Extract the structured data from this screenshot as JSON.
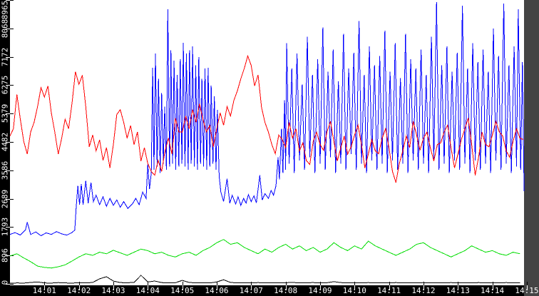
{
  "chart_data": {
    "type": "line",
    "title": "",
    "xlabel": "",
    "ylabel": "",
    "grid": false,
    "legend": "none",
    "plot_bg": "#ffffff",
    "axis_bg": "#000000",
    "tick_text_color": "#ffffff",
    "x_axis": {
      "unit": "time",
      "start_time": "14:00",
      "range_minutes": [
        0,
        14.92
      ],
      "ticks": [
        {
          "minute": 1,
          "label": "14:01"
        },
        {
          "minute": 2,
          "label": "14:02"
        },
        {
          "minute": 3,
          "label": "14:03"
        },
        {
          "minute": 4,
          "label": "14:04"
        },
        {
          "minute": 5,
          "label": "14:05"
        },
        {
          "minute": 6,
          "label": "14:06"
        },
        {
          "minute": 7,
          "label": "14:07"
        },
        {
          "minute": 8,
          "label": "14:08"
        },
        {
          "minute": 9,
          "label": "14:09"
        },
        {
          "minute": 10,
          "label": "14:10"
        },
        {
          "minute": 11,
          "label": "14:11"
        },
        {
          "minute": 12,
          "label": "14:12"
        },
        {
          "minute": 13,
          "label": "14:13"
        },
        {
          "minute": 14,
          "label": "14:14"
        },
        {
          "minute": 15,
          "label": "14:15"
        }
      ]
    },
    "y_axis": {
      "range": [
        0,
        8965
      ],
      "ticks": [
        0,
        896,
        1793,
        2689,
        3586,
        4482,
        5379,
        6275,
        7172,
        8068,
        8965
      ],
      "tick_labels": [
        "0",
        "896",
        "1793",
        "2689",
        "3586",
        "4482",
        "5379",
        "6275",
        "7172",
        "8068",
        "8965"
      ]
    },
    "series": [
      {
        "name": "red",
        "color": "#ff0000",
        "t0": 0,
        "dt": 0.1,
        "values": [
          4670,
          4900,
          5980,
          5200,
          4500,
          4100,
          4800,
          5100,
          5600,
          6200,
          5900,
          6250,
          5400,
          4800,
          4100,
          4600,
          5200,
          4900,
          5700,
          6700,
          6300,
          6590,
          5600,
          4330,
          4700,
          4200,
          4550,
          3900,
          4300,
          3660,
          4400,
          5350,
          5500,
          5100,
          4600,
          5000,
          4400,
          4800,
          3880,
          4300,
          3800,
          3550,
          3430,
          3900,
          3550,
          4200,
          4600,
          4100,
          5240,
          4800,
          4790,
          5300,
          4900,
          5500,
          5100,
          5690,
          5200,
          4800,
          5000,
          4330,
          4900,
          5400,
          5010,
          5600,
          5300,
          5800,
          6100,
          6480,
          6800,
          7200,
          6900,
          6255,
          6600,
          5580,
          5100,
          4790,
          4400,
          4110,
          4700,
          4560,
          4300,
          5100,
          4600,
          4900,
          4200,
          4450,
          3900,
          3770,
          4500,
          4790,
          4400,
          4220,
          4800,
          5130,
          4500,
          3880,
          4300,
          4670,
          4100,
          4330,
          4700,
          5010,
          4400,
          3660,
          4100,
          4560,
          4200,
          4110,
          4600,
          4900,
          4300,
          3550,
          3200,
          3800,
          4200,
          4670,
          4300,
          5130,
          4700,
          4220,
          4600,
          4790,
          4300,
          3880,
          4400,
          4450,
          4800,
          5010,
          4300,
          3660,
          4100,
          4560,
          4900,
          5240,
          4400,
          3430,
          4000,
          4790,
          4400,
          4330,
          4700,
          5130,
          4800,
          4670,
          4200,
          4000,
          4500,
          4900,
          4600,
          4560
        ]
      },
      {
        "name": "blue",
        "color": "#0000ff",
        "points": [
          [
            0.0,
            1560
          ],
          [
            0.15,
            1620
          ],
          [
            0.3,
            1540
          ],
          [
            0.45,
            1700
          ],
          [
            0.5,
            1950
          ],
          [
            0.6,
            1560
          ],
          [
            0.75,
            1640
          ],
          [
            0.9,
            1520
          ],
          [
            1.05,
            1610
          ],
          [
            1.2,
            1560
          ],
          [
            1.35,
            1650
          ],
          [
            1.5,
            1580
          ],
          [
            1.65,
            1540
          ],
          [
            1.8,
            1620
          ],
          [
            1.88,
            1700
          ],
          [
            1.92,
            2400
          ],
          [
            1.97,
            3100
          ],
          [
            2.02,
            2500
          ],
          [
            2.07,
            3150
          ],
          [
            2.12,
            2500
          ],
          [
            2.2,
            3250
          ],
          [
            2.27,
            2550
          ],
          [
            2.35,
            3200
          ],
          [
            2.42,
            2600
          ],
          [
            2.5,
            2800
          ],
          [
            2.6,
            2500
          ],
          [
            2.7,
            2750
          ],
          [
            2.8,
            2450
          ],
          [
            2.9,
            2700
          ],
          [
            3.0,
            2480
          ],
          [
            3.1,
            2650
          ],
          [
            3.2,
            2420
          ],
          [
            3.3,
            2600
          ],
          [
            3.42,
            2380
          ],
          [
            3.55,
            2520
          ],
          [
            3.65,
            2700
          ],
          [
            3.75,
            2500
          ],
          [
            3.85,
            2900
          ],
          [
            3.95,
            2700
          ],
          [
            4.0,
            3770
          ],
          [
            4.05,
            3000
          ],
          [
            4.1,
            3500
          ],
          [
            4.14,
            6820
          ],
          [
            4.18,
            3600
          ],
          [
            4.22,
            7270
          ],
          [
            4.27,
            3700
          ],
          [
            4.31,
            6480
          ],
          [
            4.36,
            3500
          ],
          [
            4.4,
            6030
          ],
          [
            4.45,
            3800
          ],
          [
            4.49,
            5600
          ],
          [
            4.54,
            3600
          ],
          [
            4.58,
            8670
          ],
          [
            4.63,
            3700
          ],
          [
            4.67,
            7380
          ],
          [
            4.72,
            3800
          ],
          [
            4.76,
            7045
          ],
          [
            4.81,
            3600
          ],
          [
            4.85,
            6600
          ],
          [
            4.9,
            3700
          ],
          [
            4.94,
            7100
          ],
          [
            4.99,
            3800
          ],
          [
            5.03,
            7610
          ],
          [
            5.08,
            3700
          ],
          [
            5.12,
            7270
          ],
          [
            5.17,
            3600
          ],
          [
            5.21,
            7380
          ],
          [
            5.26,
            3800
          ],
          [
            5.3,
            7500
          ],
          [
            5.35,
            3700
          ],
          [
            5.39,
            6900
          ],
          [
            5.44,
            3600
          ],
          [
            5.48,
            7160
          ],
          [
            5.53,
            3800
          ],
          [
            5.57,
            6480
          ],
          [
            5.62,
            3700
          ],
          [
            5.66,
            6800
          ],
          [
            5.71,
            3600
          ],
          [
            5.75,
            6820
          ],
          [
            5.8,
            3700
          ],
          [
            5.84,
            6260
          ],
          [
            5.89,
            3800
          ],
          [
            5.93,
            5920
          ],
          [
            5.98,
            3600
          ],
          [
            6.02,
            5500
          ],
          [
            6.07,
            3400
          ],
          [
            6.12,
            2900
          ],
          [
            6.2,
            2600
          ],
          [
            6.3,
            3320
          ],
          [
            6.38,
            2550
          ],
          [
            6.45,
            2800
          ],
          [
            6.55,
            2520
          ],
          [
            6.62,
            2750
          ],
          [
            6.7,
            2480
          ],
          [
            6.78,
            2700
          ],
          [
            6.85,
            2550
          ],
          [
            6.92,
            2820
          ],
          [
            7.0,
            2600
          ],
          [
            7.08,
            2780
          ],
          [
            7.15,
            2560
          ],
          [
            7.25,
            3430
          ],
          [
            7.32,
            2650
          ],
          [
            7.4,
            2850
          ],
          [
            7.5,
            2700
          ],
          [
            7.58,
            2950
          ],
          [
            7.65,
            2800
          ],
          [
            7.72,
            3100
          ],
          [
            7.78,
            4000
          ],
          [
            7.82,
            3300
          ],
          [
            7.88,
            4900
          ],
          [
            7.92,
            3500
          ],
          [
            7.97,
            5800
          ],
          [
            8.0,
            3600
          ],
          [
            8.03,
            7600
          ],
          [
            8.1,
            3800
          ],
          [
            8.18,
            6800
          ],
          [
            8.25,
            3500
          ],
          [
            8.33,
            7270
          ],
          [
            8.4,
            3900
          ],
          [
            8.48,
            6300
          ],
          [
            8.55,
            3600
          ],
          [
            8.63,
            7800
          ],
          [
            8.7,
            4000
          ],
          [
            8.78,
            6600
          ],
          [
            8.85,
            3500
          ],
          [
            8.93,
            7100
          ],
          [
            9.0,
            3800
          ],
          [
            9.08,
            8100
          ],
          [
            9.15,
            3600
          ],
          [
            9.23,
            6700
          ],
          [
            9.3,
            4000
          ],
          [
            9.38,
            7400
          ],
          [
            9.45,
            3500
          ],
          [
            9.53,
            6400
          ],
          [
            9.6,
            3800
          ],
          [
            9.68,
            7900
          ],
          [
            9.75,
            3600
          ],
          [
            9.83,
            6800
          ],
          [
            9.9,
            4100
          ],
          [
            9.98,
            7300
          ],
          [
            10.05,
            3600
          ],
          [
            10.13,
            8300
          ],
          [
            10.2,
            3800
          ],
          [
            10.28,
            6600
          ],
          [
            10.35,
            3500
          ],
          [
            10.43,
            7500
          ],
          [
            10.5,
            3900
          ],
          [
            10.58,
            6900
          ],
          [
            10.65,
            3600
          ],
          [
            10.73,
            7200
          ],
          [
            10.8,
            3800
          ],
          [
            10.88,
            8000
          ],
          [
            10.95,
            3500
          ],
          [
            11.03,
            6700
          ],
          [
            11.1,
            3900
          ],
          [
            11.18,
            7600
          ],
          [
            11.25,
            3600
          ],
          [
            11.33,
            6500
          ],
          [
            11.4,
            3800
          ],
          [
            11.48,
            7900
          ],
          [
            11.55,
            3500
          ],
          [
            11.63,
            7100
          ],
          [
            11.7,
            3900
          ],
          [
            11.78,
            6800
          ],
          [
            11.85,
            3600
          ],
          [
            11.93,
            7400
          ],
          [
            12.0,
            3800
          ],
          [
            12.08,
            6600
          ],
          [
            12.15,
            3500
          ],
          [
            12.23,
            7800
          ],
          [
            12.3,
            3900
          ],
          [
            12.38,
            8900
          ],
          [
            12.45,
            3600
          ],
          [
            12.53,
            6900
          ],
          [
            12.6,
            3800
          ],
          [
            12.68,
            7500
          ],
          [
            12.75,
            3500
          ],
          [
            12.83,
            6700
          ],
          [
            12.9,
            3900
          ],
          [
            12.98,
            7300
          ],
          [
            13.05,
            3600
          ],
          [
            13.13,
            8780
          ],
          [
            13.2,
            3800
          ],
          [
            13.28,
            6800
          ],
          [
            13.35,
            3500
          ],
          [
            13.43,
            7600
          ],
          [
            13.5,
            3900
          ],
          [
            13.58,
            7000
          ],
          [
            13.65,
            3600
          ],
          [
            13.73,
            7400
          ],
          [
            13.8,
            3800
          ],
          [
            13.88,
            6700
          ],
          [
            13.95,
            3500
          ],
          [
            14.03,
            8060
          ],
          [
            14.1,
            3900
          ],
          [
            14.18,
            7200
          ],
          [
            14.25,
            3600
          ],
          [
            14.33,
            8850
          ],
          [
            14.4,
            3800
          ],
          [
            14.48,
            6900
          ],
          [
            14.55,
            3500
          ],
          [
            14.63,
            7500
          ],
          [
            14.7,
            3700
          ],
          [
            14.75,
            8670
          ],
          [
            14.82,
            3600
          ],
          [
            14.87,
            7000
          ],
          [
            14.92,
            2930
          ]
        ]
      },
      {
        "name": "green",
        "color": "#00dd00",
        "t0": 0,
        "dt": 0.2,
        "values": [
          880,
          950,
          820,
          700,
          560,
          520,
          500,
          540,
          600,
          720,
          850,
          950,
          900,
          1000,
          950,
          1060,
          980,
          900,
          1000,
          1100,
          1050,
          950,
          1000,
          900,
          850,
          950,
          1000,
          900,
          1050,
          1150,
          1300,
          1400,
          1250,
          1300,
          1150,
          1050,
          950,
          1100,
          1000,
          1150,
          1250,
          1100,
          1200,
          1050,
          1150,
          1000,
          1100,
          1300,
          1150,
          1050,
          1200,
          1100,
          1350,
          1200,
          1100,
          1000,
          900,
          1000,
          1100,
          1250,
          1300,
          1150,
          1050,
          950,
          850,
          950,
          1050,
          1200,
          1100,
          1000,
          1050,
          950,
          900,
          1000,
          950
        ]
      },
      {
        "name": "black",
        "color": "#000000",
        "t0": 0,
        "dt": 0.2,
        "values": [
          20,
          30,
          25,
          45,
          60,
          30,
          25,
          40,
          30,
          25,
          35,
          30,
          45,
          160,
          225,
          90,
          40,
          35,
          45,
          270,
          60,
          90,
          40,
          30,
          35,
          110,
          45,
          30,
          35,
          30,
          60,
          130,
          45,
          30,
          35,
          30,
          40,
          30,
          35,
          30,
          35,
          45,
          30,
          35,
          40,
          30,
          35,
          70,
          40,
          30,
          35,
          30,
          40,
          30,
          35,
          30,
          40,
          30,
          35,
          30,
          40,
          30,
          35,
          30,
          40,
          30,
          35,
          30,
          40,
          30,
          35,
          30,
          40,
          30,
          35
        ]
      }
    ]
  }
}
